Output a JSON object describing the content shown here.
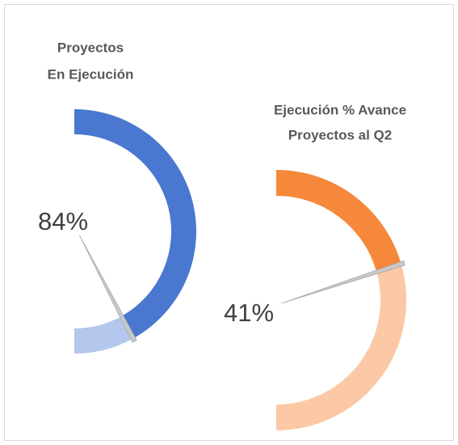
{
  "chart_data": [
    {
      "type": "gauge",
      "title": [
        "Proyectos",
        "En Ejecución"
      ],
      "values": [
        84
      ],
      "value_labels": [
        "84%"
      ],
      "ylim": [
        0,
        100
      ],
      "color": "#4a78d0",
      "track_color": "#b4c7ec"
    },
    {
      "type": "gauge",
      "title": [
        "Ejecución % Avance",
        "Proyectos al Q2"
      ],
      "values": [
        41
      ],
      "value_labels": [
        "41%"
      ],
      "ylim": [
        0,
        100
      ],
      "color": "#f5883b",
      "track_color": "#fbc9a6"
    }
  ]
}
